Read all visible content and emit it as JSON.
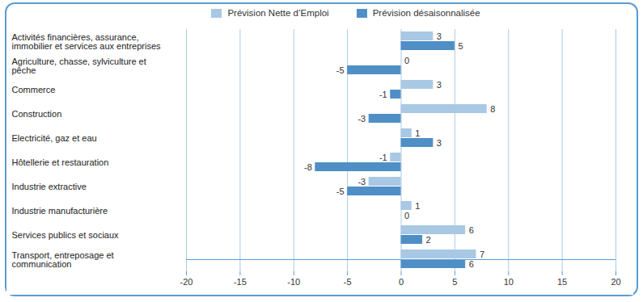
{
  "chart_data": {
    "type": "bar",
    "orientation": "horizontal",
    "categories": [
      "Activités financières, assurance, immobilier et services aux entreprises",
      "Agriculture, chasse, sylviculture et pêche",
      "Commerce",
      "Construction",
      "Electricité, gaz et eau",
      "Hôtellerie et restauration",
      "Industrie extractive",
      "Industrie manufacturière",
      "Services publics et sociaux",
      "Transport, entreposage et communication"
    ],
    "series": [
      {
        "name": "Prévision Nette d’Emploi",
        "color": "#a9c8e4",
        "values": [
          3,
          0,
          3,
          8,
          1,
          -1,
          -3,
          1,
          6,
          7
        ]
      },
      {
        "name": "Prévision désaisonnalisée",
        "color": "#4f8fc6",
        "values": [
          5,
          -5,
          -1,
          -3,
          3,
          -8,
          -5,
          0,
          2,
          6
        ]
      }
    ],
    "xlim": [
      -20,
      20
    ],
    "xticks": [
      -20,
      -15,
      -10,
      -5,
      0,
      5,
      10,
      15,
      20
    ],
    "grid": true,
    "legend": "top",
    "data_labels": true
  }
}
